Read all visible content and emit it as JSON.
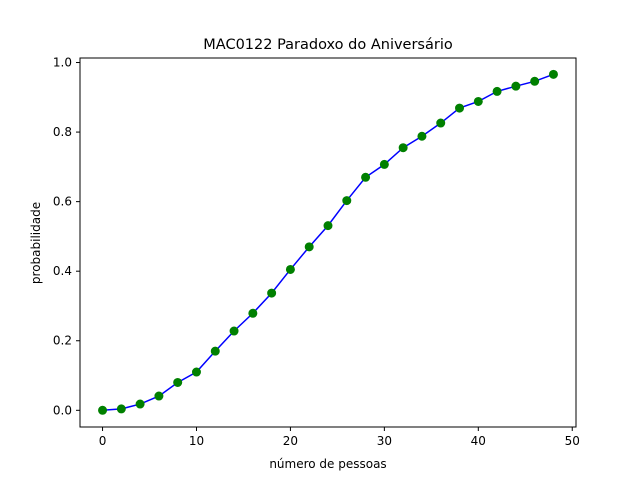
{
  "chart_data": {
    "type": "line",
    "title": "MAC0122 Paradoxo do Aniversário",
    "xlabel": "número de pessoas",
    "ylabel": "probabilidade",
    "xlim": [
      -2.4,
      50.4
    ],
    "ylim": [
      -0.048,
      1.013
    ],
    "xticks": [
      0,
      10,
      20,
      30,
      40,
      50
    ],
    "xtick_labels": [
      "0",
      "10",
      "20",
      "30",
      "40",
      "50"
    ],
    "yticks": [
      0.0,
      0.2,
      0.4,
      0.6,
      0.8,
      1.0
    ],
    "ytick_labels": [
      "0.0",
      "0.2",
      "0.4",
      "0.6",
      "0.8",
      "1.0"
    ],
    "grid": false,
    "line_color": "#0000ff",
    "marker_color": "#008000",
    "series": [
      {
        "x": [
          0,
          2,
          4,
          6,
          8,
          10,
          12,
          14,
          16,
          18,
          20,
          22,
          24,
          26,
          28,
          30,
          32,
          34,
          36,
          38,
          40,
          42,
          44,
          46,
          48
        ],
        "values": [
          0.0,
          0.004,
          0.018,
          0.041,
          0.08,
          0.11,
          0.17,
          0.228,
          0.279,
          0.337,
          0.405,
          0.47,
          0.531,
          0.603,
          0.67,
          0.707,
          0.755,
          0.788,
          0.826,
          0.869,
          0.888,
          0.917,
          0.932,
          0.946,
          0.966
        ]
      }
    ]
  }
}
